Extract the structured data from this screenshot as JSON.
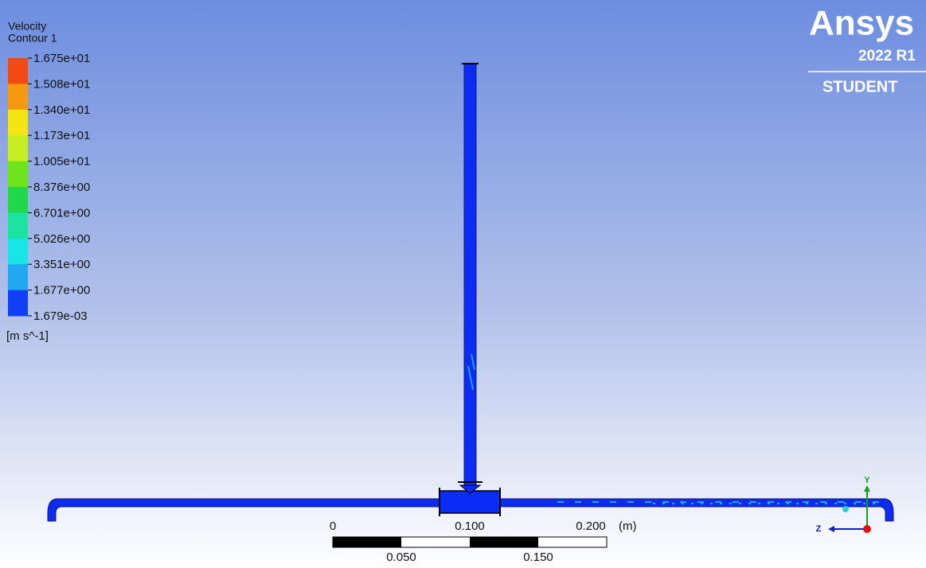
{
  "legend": {
    "title": [
      "Velocity",
      "Contour 1"
    ],
    "labels": [
      "1.675e+01",
      "1.508e+01",
      "1.340e+01",
      "1.173e+01",
      "1.005e+01",
      "8.376e+00",
      "6.701e+00",
      "5.026e+00",
      "3.351e+00",
      "1.677e+00",
      "1.679e-03"
    ],
    "unit": "[m s^-1]"
  },
  "logo": {
    "brand": "Ansys",
    "version": "2022 R1",
    "edition": "STUDENT"
  },
  "scale_bar": {
    "top_labels": [
      "0",
      "0.100",
      "0.200"
    ],
    "unit": "(m)",
    "bottom_labels": [
      "0.050",
      "0.150"
    ]
  },
  "triad": {
    "y": "Y",
    "z": "Z"
  }
}
